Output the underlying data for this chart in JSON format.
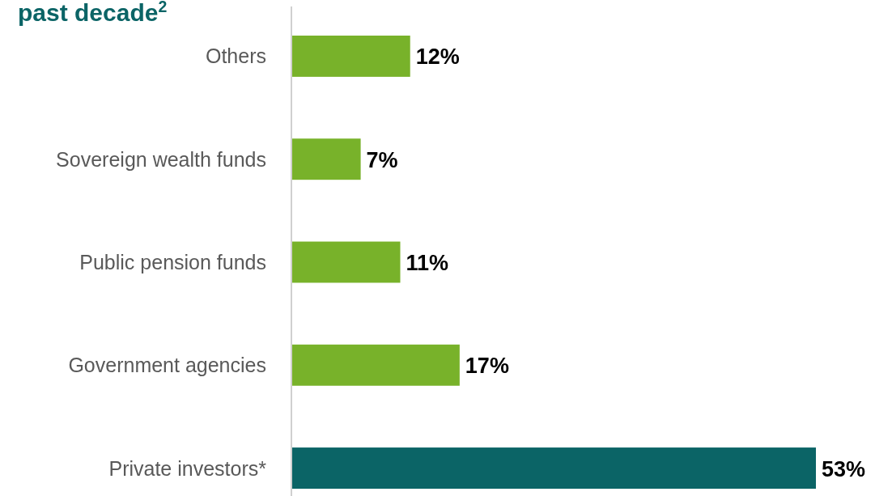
{
  "chart_data": {
    "type": "bar",
    "orientation": "horizontal",
    "title": "past decade$^{2}$",
    "categories": [
      "Others",
      "Sovereign wealth funds",
      "Public pension funds",
      "Government agencies",
      "Private investors*"
    ],
    "values": [
      12,
      7,
      11,
      17,
      53
    ],
    "colors": [
      "#78b22a",
      "#78b22a",
      "#78b22a",
      "#78b22a",
      "#0b6466"
    ],
    "value_labels": [
      "12%",
      "7%",
      "11%",
      "17%",
      "53%"
    ]
  }
}
